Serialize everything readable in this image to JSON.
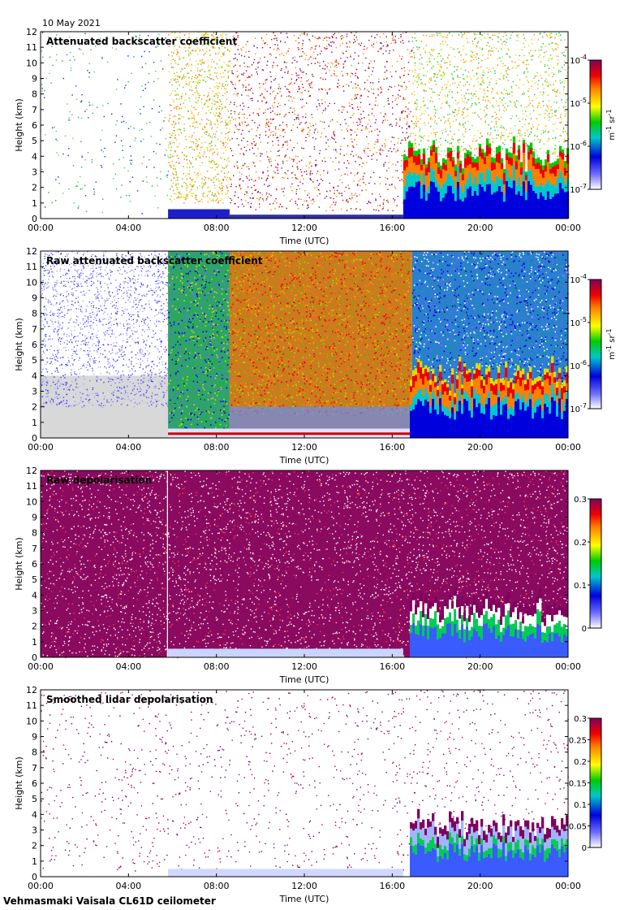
{
  "date": "10 May 2021",
  "footer": "Vehmasmaki Vaisala CL61D ceilometer",
  "chart_data": [
    {
      "type": "heatmap",
      "title": "Attenuated backscatter coefficient",
      "xlabel": "Time (UTC)",
      "ylabel": "Height (km)",
      "x_ticks": [
        "00:00",
        "04:00",
        "08:00",
        "12:00",
        "16:00",
        "20:00",
        "00:00"
      ],
      "y_ticks": [
        "0",
        "1",
        "2",
        "3",
        "4",
        "5",
        "6",
        "7",
        "8",
        "9",
        "10",
        "11",
        "12"
      ],
      "ylim": [
        0,
        12
      ],
      "colorbar": {
        "scale": "log",
        "ticks": [
          {
            "base": "10",
            "exp": "-4"
          },
          {
            "base": "10",
            "exp": "-5"
          },
          {
            "base": "10",
            "exp": "-6"
          },
          {
            "base": "10",
            "exp": "-7"
          }
        ],
        "unit": {
          "m": "m",
          "m_exp": "-1",
          "sr": "sr",
          "sr_exp": "-1"
        }
      }
    },
    {
      "type": "heatmap",
      "title": "Raw attenuated backscatter coefficient",
      "xlabel": "Time (UTC)",
      "ylabel": "Height (km)",
      "x_ticks": [
        "00:00",
        "04:00",
        "08:00",
        "12:00",
        "16:00",
        "20:00",
        "00:00"
      ],
      "y_ticks": [
        "0",
        "1",
        "2",
        "3",
        "4",
        "5",
        "6",
        "7",
        "8",
        "9",
        "10",
        "11",
        "12"
      ],
      "ylim": [
        0,
        12
      ],
      "colorbar": {
        "scale": "log",
        "ticks": [
          {
            "base": "10",
            "exp": "-4"
          },
          {
            "base": "10",
            "exp": "-5"
          },
          {
            "base": "10",
            "exp": "-6"
          },
          {
            "base": "10",
            "exp": "-7"
          }
        ],
        "unit": {
          "m": "m",
          "m_exp": "-1",
          "sr": "sr",
          "sr_exp": "-1"
        }
      }
    },
    {
      "type": "heatmap",
      "title": "Raw depolarisation",
      "xlabel": "Time (UTC)",
      "ylabel": "Height (km)",
      "x_ticks": [
        "00:00",
        "04:00",
        "08:00",
        "12:00",
        "16:00",
        "20:00",
        "00:00"
      ],
      "y_ticks": [
        "0",
        "1",
        "2",
        "3",
        "4",
        "5",
        "6",
        "7",
        "8",
        "9",
        "10",
        "11",
        "12"
      ],
      "ylim": [
        0,
        12
      ],
      "colorbar": {
        "scale": "linear",
        "ticks": [
          "0.3",
          "0.2",
          "0.1",
          "0"
        ]
      }
    },
    {
      "type": "heatmap",
      "title": "Smoothed lidar depolarisation",
      "xlabel": "Time (UTC)",
      "ylabel": "Height (km)",
      "x_ticks": [
        "00:00",
        "04:00",
        "08:00",
        "12:00",
        "16:00",
        "20:00",
        "00:00"
      ],
      "y_ticks": [
        "0",
        "1",
        "2",
        "3",
        "4",
        "5",
        "6",
        "7",
        "8",
        "9",
        "10",
        "11",
        "12"
      ],
      "ylim": [
        0,
        12
      ],
      "colorbar": {
        "scale": "linear",
        "ticks": [
          "0.3",
          "0.25",
          "0.2",
          "0.15",
          "0.1",
          "0.05",
          "0"
        ]
      }
    }
  ]
}
